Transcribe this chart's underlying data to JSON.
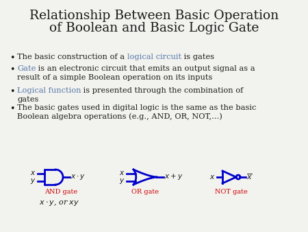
{
  "title_line1": "Relationship Between Basic Operation",
  "title_line2": "of Boolean and Basic Logic Gate",
  "title_fontsize": 13.5,
  "bullet_fontsize": 8.2,
  "background_color": "#f2f2ee",
  "text_color": "#1a1a1a",
  "highlight_color": "#5577aa",
  "gate_color": "#0000cc",
  "label_color": "#cc0000",
  "and_label": "AND gate",
  "or_label": "OR gate",
  "not_label": "NOT gate"
}
